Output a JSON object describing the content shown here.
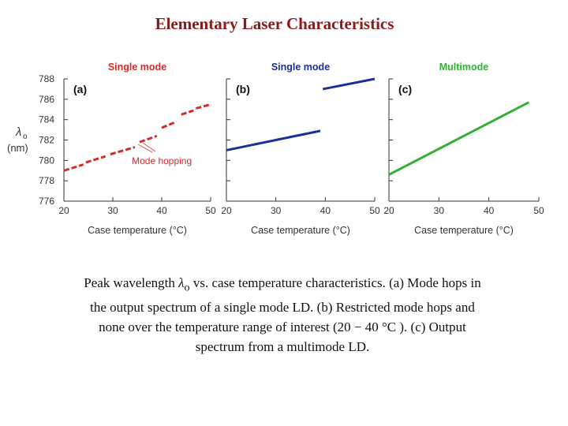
{
  "slide": {
    "title": "Elementary Laser Characteristics"
  },
  "y_axis": {
    "symbol": "λ",
    "subscript": "o",
    "unit": "(nm)"
  },
  "colors": {
    "title": "#8b1a1a",
    "red": "#d42b2b",
    "blue": "#1c2f9a",
    "green": "#33b035",
    "axis": "#333333"
  },
  "chart_data": [
    {
      "type": "line",
      "panel": "(a)",
      "header": "Single mode",
      "header_color": "#d42b2b",
      "xlabel": "Case temperature (°C)",
      "ylabel": "λo (nm)",
      "xlim": [
        20,
        50
      ],
      "ylim": [
        776,
        788
      ],
      "x_ticks": [
        "20",
        "30",
        "40",
        "50"
      ],
      "y_ticks": [
        "776",
        "778",
        "780",
        "782",
        "784",
        "786",
        "788"
      ],
      "annotation": {
        "text": "Mode hopping",
        "color": "#d42b2b",
        "x": 35.5,
        "y": 781.8
      },
      "series": [
        {
          "color": "#d42b2b",
          "dashed": true,
          "segments": [
            {
              "x": [
                20,
                24
              ],
              "y": [
                779.0,
                779.6
              ]
            },
            {
              "x": [
                24.5,
                28.5
              ],
              "y": [
                779.8,
                780.4
              ]
            },
            {
              "x": [
                29.5,
                34.5
              ],
              "y": [
                780.6,
                781.3
              ]
            },
            {
              "x": [
                35.5,
                39
              ],
              "y": [
                781.8,
                782.4
              ]
            },
            {
              "x": [
                40,
                43
              ],
              "y": [
                783.2,
                783.8
              ]
            },
            {
              "x": [
                44,
                46.5
              ],
              "y": [
                784.5,
                784.9
              ]
            },
            {
              "x": [
                47,
                50
              ],
              "y": [
                785.1,
                785.5
              ]
            }
          ]
        }
      ]
    },
    {
      "type": "line",
      "panel": "(b)",
      "header": "Single mode",
      "header_color": "#1c2f9a",
      "xlabel": "Case temperature (°C)",
      "xlim": [
        20,
        50
      ],
      "ylim": [
        776,
        788
      ],
      "x_ticks": [
        "20",
        "30",
        "40",
        "50"
      ],
      "series": [
        {
          "color": "#1c2f9a",
          "dashed": false,
          "segments": [
            {
              "x": [
                20,
                39
              ],
              "y": [
                781.0,
                782.9
              ]
            },
            {
              "x": [
                39.5,
                50
              ],
              "y": [
                787.0,
                788.0
              ]
            }
          ]
        }
      ]
    },
    {
      "type": "line",
      "panel": "(c)",
      "header": "Multimode",
      "header_color": "#33b035",
      "xlabel": "Case temperature (°C)",
      "xlim": [
        20,
        50
      ],
      "ylim": [
        776,
        788
      ],
      "x_ticks": [
        "20",
        "30",
        "40",
        "50"
      ],
      "series": [
        {
          "color": "#33b035",
          "dashed": false,
          "segments": [
            {
              "x": [
                20,
                48
              ],
              "y": [
                778.6,
                785.7
              ]
            }
          ]
        }
      ]
    }
  ],
  "caption": {
    "line1_a": "Peak wavelength ",
    "line1_symbol": "λ",
    "line1_sub": "o",
    "line1_b": " vs. case temperature characteristics. (a) Mode hops in",
    "line2": "the output spectrum of a single mode LD. (b) Restricted mode hops and",
    "line3": "none over the temperature range of interest (20 − 40 °C ). (c) Output",
    "line4": "spectrum from a multimode LD."
  }
}
